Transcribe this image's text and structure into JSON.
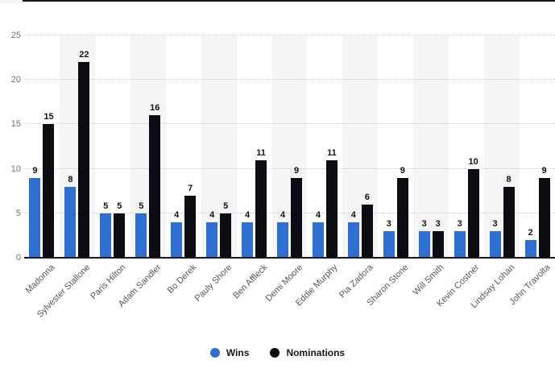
{
  "chart_data": {
    "type": "bar",
    "title": "",
    "xlabel": "",
    "ylabel": "",
    "categories": [
      "Madonna",
      "Sylvester Stallone",
      "Paris Hilton",
      "Adam Sandler",
      "Bo Derek",
      "Pauly Shore",
      "Ben Affleck",
      "Demi Moore",
      "Eddie Murphy",
      "Pia Zadora",
      "Sharon Stone",
      "Will Smith",
      "Kevin Costner",
      "Lindsay Lohan",
      "John Travolta"
    ],
    "series": [
      {
        "name": "Wins",
        "color": "#2e70d2",
        "values": [
          9,
          8,
          5,
          5,
          4,
          4,
          4,
          4,
          4,
          4,
          3,
          3,
          3,
          3,
          2
        ]
      },
      {
        "name": "Nominations",
        "color": "#0b0d12",
        "values": [
          15,
          22,
          5,
          16,
          7,
          5,
          11,
          9,
          11,
          6,
          9,
          3,
          10,
          8,
          9
        ]
      }
    ],
    "ylim": [
      0,
      25
    ],
    "yticks": [
      0,
      5,
      10,
      15,
      20,
      25
    ],
    "grid": "horizontal-dotted",
    "legend_position": "bottom",
    "colors": {
      "wins": "#2e70d2",
      "nominations": "#0b0d12",
      "column_band": "#f5f5f6",
      "gridline": "#c5c6c8",
      "axis_line": "#17191e"
    }
  }
}
